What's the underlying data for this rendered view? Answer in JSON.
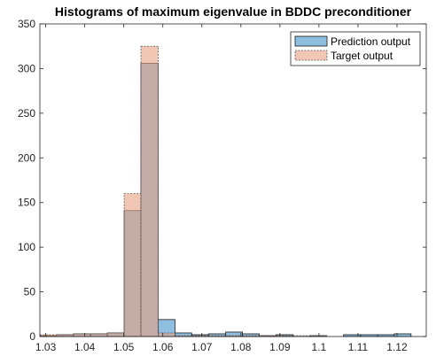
{
  "chart_data": {
    "type": "bar",
    "title": "Histograms of maximum eigenvalue in BDDC preconditioner",
    "xlabel": "",
    "ylabel": "",
    "xlim": [
      1.0285,
      1.1275
    ],
    "ylim": [
      0,
      350
    ],
    "x_ticks": [
      "1.03",
      "1.04",
      "1.05",
      "1.06",
      "1.07",
      "1.08",
      "1.09",
      "1.1",
      "1.11",
      "1.12"
    ],
    "y_ticks": [
      "0",
      "50",
      "100",
      "150",
      "200",
      "250",
      "300",
      "350"
    ],
    "grid": false,
    "legend_position": "top-right",
    "series": [
      {
        "name": "Prediction output",
        "color": "#8fbfe0",
        "edge_color": "#1a1a1a",
        "edge_style": "solid",
        "opacity": 1.0,
        "bins": [
          {
            "x0": 1.0285,
            "x1": 1.0328,
            "count": 1
          },
          {
            "x0": 1.0328,
            "x1": 1.0371,
            "count": 2
          },
          {
            "x0": 1.0371,
            "x1": 1.0415,
            "count": 3
          },
          {
            "x0": 1.0415,
            "x1": 1.0458,
            "count": 3
          },
          {
            "x0": 1.0458,
            "x1": 1.0501,
            "count": 4
          },
          {
            "x0": 1.0501,
            "x1": 1.0544,
            "count": 141
          },
          {
            "x0": 1.0544,
            "x1": 1.0588,
            "count": 306
          },
          {
            "x0": 1.0588,
            "x1": 1.0631,
            "count": 19
          },
          {
            "x0": 1.0631,
            "x1": 1.0674,
            "count": 4
          },
          {
            "x0": 1.0674,
            "x1": 1.0717,
            "count": 2
          },
          {
            "x0": 1.0717,
            "x1": 1.0761,
            "count": 3
          },
          {
            "x0": 1.0761,
            "x1": 1.0804,
            "count": 5
          },
          {
            "x0": 1.0804,
            "x1": 1.0847,
            "count": 3
          },
          {
            "x0": 1.0847,
            "x1": 1.089,
            "count": 1
          },
          {
            "x0": 1.089,
            "x1": 1.0934,
            "count": 2
          },
          {
            "x0": 1.0934,
            "x1": 1.0977,
            "count": 0
          },
          {
            "x0": 1.0977,
            "x1": 1.102,
            "count": 1
          },
          {
            "x0": 1.102,
            "x1": 1.1063,
            "count": 0
          },
          {
            "x0": 1.1063,
            "x1": 1.1107,
            "count": 2
          },
          {
            "x0": 1.1107,
            "x1": 1.115,
            "count": 2
          },
          {
            "x0": 1.115,
            "x1": 1.1193,
            "count": 2
          },
          {
            "x0": 1.1193,
            "x1": 1.1236,
            "count": 3
          }
        ]
      },
      {
        "name": "Target output",
        "color": "#e8a080",
        "edge_color": "#555555",
        "edge_style": "dashed",
        "opacity": 0.6,
        "bins": [
          {
            "x0": 1.0285,
            "x1": 1.0328,
            "count": 2
          },
          {
            "x0": 1.0328,
            "x1": 1.0371,
            "count": 2
          },
          {
            "x0": 1.0371,
            "x1": 1.0415,
            "count": 3
          },
          {
            "x0": 1.0415,
            "x1": 1.0458,
            "count": 3
          },
          {
            "x0": 1.0458,
            "x1": 1.0501,
            "count": 4
          },
          {
            "x0": 1.0501,
            "x1": 1.0544,
            "count": 160
          },
          {
            "x0": 1.0544,
            "x1": 1.0588,
            "count": 325
          },
          {
            "x0": 1.0588,
            "x1": 1.0631,
            "count": 4
          },
          {
            "x0": 1.0631,
            "x1": 1.0674,
            "count": 1
          },
          {
            "x0": 1.0674,
            "x1": 1.0717,
            "count": 1
          },
          {
            "x0": 1.0717,
            "x1": 1.0761,
            "count": 1
          },
          {
            "x0": 1.0761,
            "x1": 1.0804,
            "count": 1
          },
          {
            "x0": 1.0804,
            "x1": 1.0847,
            "count": 1
          },
          {
            "x0": 1.0847,
            "x1": 1.089,
            "count": 1
          },
          {
            "x0": 1.089,
            "x1": 1.0934,
            "count": 1
          },
          {
            "x0": 1.0934,
            "x1": 1.0977,
            "count": 1
          },
          {
            "x0": 1.0977,
            "x1": 1.102,
            "count": 1
          }
        ]
      }
    ]
  }
}
